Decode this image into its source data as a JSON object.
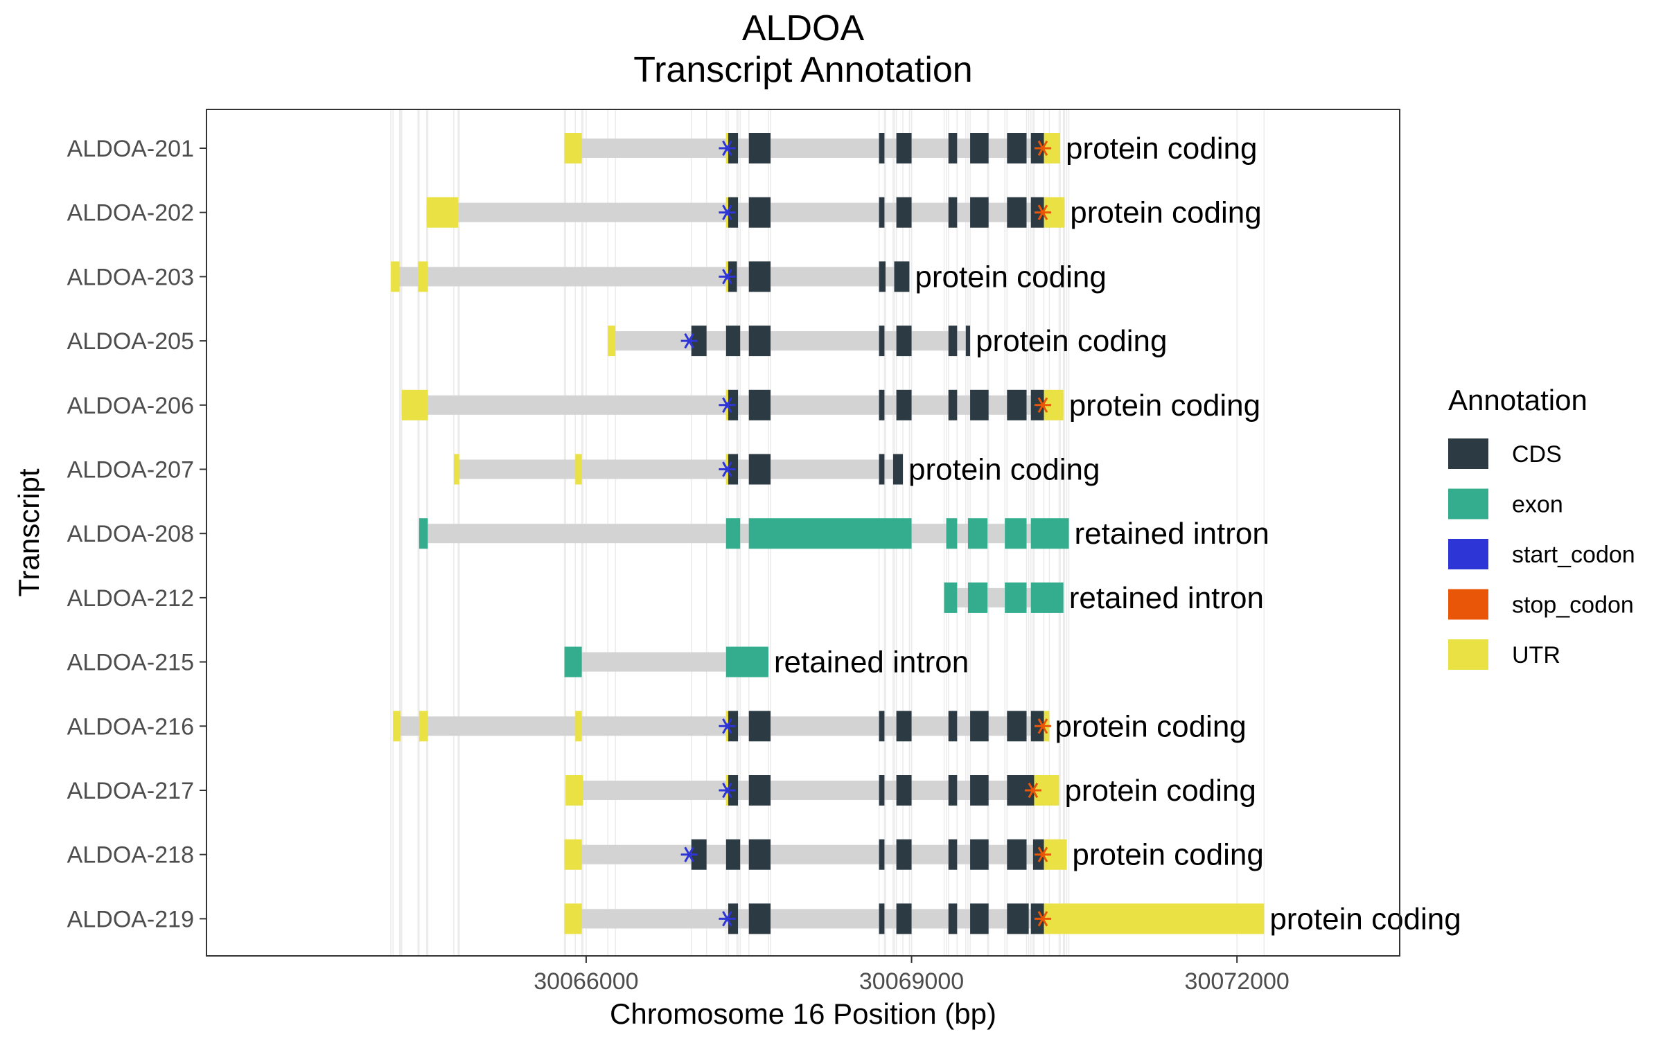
{
  "chart_data": {
    "type": "gene-structure",
    "title_line1": "ALDOA",
    "title_line2": "Transcript Annotation",
    "xlabel": "Chromosome 16 Position (bp)",
    "ylabel": "Transcript",
    "xlim": [
      30062500,
      30073500
    ],
    "x_ticks": [
      30066000,
      30069000,
      30072000
    ],
    "x_tick_labels": [
      "30066000",
      "30069000",
      "30072000"
    ],
    "grid": true,
    "legend": {
      "title": "Annotation",
      "position": "right",
      "items": [
        {
          "key": "CDS",
          "label": "CDS",
          "color": "#2c3a44"
        },
        {
          "key": "exon",
          "label": "exon",
          "color": "#33ad8d"
        },
        {
          "key": "start_codon",
          "label": "start_codon",
          "color": "#2e35d6"
        },
        {
          "key": "stop_codon",
          "label": "stop_codon",
          "color": "#ea5607"
        },
        {
          "key": "UTR",
          "label": "UTR",
          "color": "#eae144"
        }
      ]
    },
    "intron_color": "#d3d3d3",
    "transcripts": [
      {
        "name": "ALDOA-219",
        "biotype": "protein coding",
        "start": 30065800,
        "end": 30072250,
        "utr": [
          [
            30065800,
            30065960
          ],
          [
            30070220,
            30072250
          ]
        ],
        "exon": [],
        "cds": [
          [
            30067310,
            30067400
          ],
          [
            30067500,
            30067700
          ],
          [
            30068700,
            30068750
          ],
          [
            30068860,
            30069000
          ],
          [
            30069340,
            30069420
          ],
          [
            30069540,
            30069710
          ],
          [
            30069880,
            30070080
          ],
          [
            30070100,
            30070220
          ]
        ],
        "start_codon": 30067300,
        "stop_codon": 30070210
      },
      {
        "name": "ALDOA-218",
        "biotype": "protein coding",
        "start": 30065800,
        "end": 30070430,
        "utr": [
          [
            30065800,
            30065960
          ],
          [
            30070220,
            30070430
          ]
        ],
        "exon": [],
        "cds": [
          [
            30066970,
            30067110
          ],
          [
            30067290,
            30067420
          ],
          [
            30067500,
            30067700
          ],
          [
            30068700,
            30068750
          ],
          [
            30068860,
            30069000
          ],
          [
            30069340,
            30069420
          ],
          [
            30069540,
            30069710
          ],
          [
            30069880,
            30070060
          ],
          [
            30070120,
            30070220
          ]
        ],
        "start_codon": 30066950,
        "stop_codon": 30070210
      },
      {
        "name": "ALDOA-217",
        "biotype": "protein coding",
        "start": 30065810,
        "end": 30070360,
        "utr": [
          [
            30065810,
            30065970
          ],
          [
            30067290,
            30067310
          ],
          [
            30070130,
            30070360
          ]
        ],
        "exon": [],
        "cds": [
          [
            30067310,
            30067400
          ],
          [
            30067500,
            30067700
          ],
          [
            30068700,
            30068750
          ],
          [
            30068860,
            30069000
          ],
          [
            30069340,
            30069420
          ],
          [
            30069540,
            30069710
          ],
          [
            30069880,
            30070130
          ]
        ],
        "start_codon": 30067300,
        "stop_codon": 30070120
      },
      {
        "name": "ALDOA-216",
        "biotype": "protein coding",
        "start": 30064220,
        "end": 30070270,
        "utr": [
          [
            30064220,
            30064290
          ],
          [
            30064460,
            30064540
          ],
          [
            30065900,
            30065960
          ],
          [
            30067290,
            30067310
          ],
          [
            30070220,
            30070270
          ]
        ],
        "exon": [],
        "cds": [
          [
            30067310,
            30067400
          ],
          [
            30067500,
            30067700
          ],
          [
            30068700,
            30068750
          ],
          [
            30068860,
            30069000
          ],
          [
            30069340,
            30069420
          ],
          [
            30069540,
            30069710
          ],
          [
            30069880,
            30070060
          ],
          [
            30070100,
            30070220
          ]
        ],
        "start_codon": 30067300,
        "stop_codon": 30070210
      },
      {
        "name": "ALDOA-215",
        "biotype": "retained intron",
        "start": 30065800,
        "end": 30067680,
        "utr": [],
        "exon": [
          [
            30065800,
            30065960
          ],
          [
            30067290,
            30067680
          ]
        ],
        "cds": [],
        "start_codon": null,
        "stop_codon": null
      },
      {
        "name": "ALDOA-212",
        "biotype": "retained intron",
        "start": 30069300,
        "end": 30070400,
        "utr": [],
        "exon": [
          [
            30069300,
            30069420
          ],
          [
            30069520,
            30069700
          ],
          [
            30069860,
            30070060
          ],
          [
            30070100,
            30070400
          ]
        ],
        "cds": [],
        "start_codon": null,
        "stop_codon": null
      },
      {
        "name": "ALDOA-208",
        "biotype": "retained intron",
        "start": 30064460,
        "end": 30070450,
        "utr": [],
        "exon": [
          [
            30064460,
            30064540
          ],
          [
            30067290,
            30067420
          ],
          [
            30067500,
            30069000
          ],
          [
            30069320,
            30069420
          ],
          [
            30069520,
            30069700
          ],
          [
            30069860,
            30070060
          ],
          [
            30070100,
            30070450
          ]
        ],
        "cds": [],
        "start_codon": null,
        "stop_codon": null
      },
      {
        "name": "ALDOA-207",
        "biotype": "protein coding",
        "start": 30064780,
        "end": 30068920,
        "utr": [
          [
            30064780,
            30064830
          ],
          [
            30065900,
            30065960
          ],
          [
            30067290,
            30067310
          ]
        ],
        "exon": [],
        "cds": [
          [
            30067310,
            30067400
          ],
          [
            30067500,
            30067700
          ],
          [
            30068700,
            30068750
          ],
          [
            30068830,
            30068920
          ]
        ],
        "start_codon": 30067300,
        "stop_codon": null
      },
      {
        "name": "ALDOA-206",
        "biotype": "protein coding",
        "start": 30064300,
        "end": 30070400,
        "utr": [
          [
            30064300,
            30064540
          ],
          [
            30067290,
            30067310
          ],
          [
            30070220,
            30070400
          ]
        ],
        "exon": [],
        "cds": [
          [
            30067310,
            30067400
          ],
          [
            30067500,
            30067700
          ],
          [
            30068700,
            30068750
          ],
          [
            30068860,
            30069000
          ],
          [
            30069340,
            30069420
          ],
          [
            30069540,
            30069710
          ],
          [
            30069880,
            30070060
          ],
          [
            30070100,
            30070220
          ]
        ],
        "start_codon": 30067300,
        "stop_codon": 30070210
      },
      {
        "name": "ALDOA-205",
        "biotype": "protein coding",
        "start": 30066200,
        "end": 30069540,
        "utr": [
          [
            30066200,
            30066270
          ]
        ],
        "exon": [],
        "cds": [
          [
            30066970,
            30067110
          ],
          [
            30067290,
            30067420
          ],
          [
            30067500,
            30067700
          ],
          [
            30068700,
            30068750
          ],
          [
            30068860,
            30069000
          ],
          [
            30069340,
            30069420
          ],
          [
            30069500,
            30069540
          ]
        ],
        "start_codon": 30066950,
        "stop_codon": null
      },
      {
        "name": "ALDOA-203",
        "biotype": "protein coding",
        "start": 30064200,
        "end": 30068980,
        "utr": [
          [
            30064200,
            30064280
          ],
          [
            30064450,
            30064540
          ],
          [
            30067290,
            30067310
          ]
        ],
        "exon": [],
        "cds": [
          [
            30067310,
            30067390
          ],
          [
            30067500,
            30067700
          ],
          [
            30068700,
            30068760
          ],
          [
            30068840,
            30068980
          ]
        ],
        "start_codon": 30067300,
        "stop_codon": null
      },
      {
        "name": "ALDOA-202",
        "biotype": "protein coding",
        "start": 30064530,
        "end": 30070410,
        "utr": [
          [
            30064530,
            30064820
          ],
          [
            30067290,
            30067310
          ],
          [
            30070220,
            30070410
          ]
        ],
        "exon": [],
        "cds": [
          [
            30067310,
            30067400
          ],
          [
            30067500,
            30067700
          ],
          [
            30068700,
            30068750
          ],
          [
            30068860,
            30069000
          ],
          [
            30069340,
            30069420
          ],
          [
            30069540,
            30069710
          ],
          [
            30069880,
            30070060
          ],
          [
            30070100,
            30070220
          ]
        ],
        "start_codon": 30067300,
        "stop_codon": 30070210
      },
      {
        "name": "ALDOA-201",
        "biotype": "protein coding",
        "start": 30065800,
        "end": 30070370,
        "utr": [
          [
            30065800,
            30065960
          ],
          [
            30067290,
            30067310
          ],
          [
            30070220,
            30070370
          ]
        ],
        "exon": [],
        "cds": [
          [
            30067310,
            30067400
          ],
          [
            30067500,
            30067700
          ],
          [
            30068700,
            30068750
          ],
          [
            30068860,
            30069000
          ],
          [
            30069340,
            30069420
          ],
          [
            30069540,
            30069710
          ],
          [
            30069880,
            30070060
          ],
          [
            30070100,
            30070220
          ]
        ],
        "start_codon": 30067300,
        "stop_codon": 30070210
      }
    ]
  }
}
